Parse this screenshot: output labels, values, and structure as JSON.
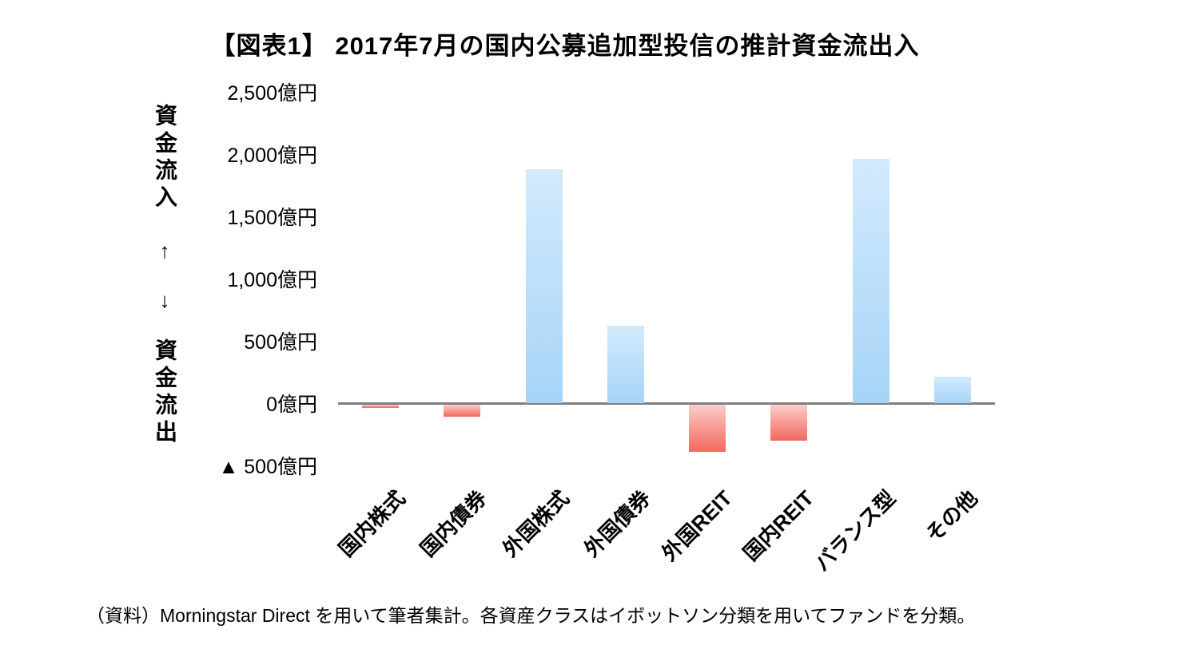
{
  "chart_data": {
    "type": "bar",
    "title": "【図表1】 2017年7月の国内公募追加型投信の推計資金流出入",
    "categories": [
      "国内株式",
      "国内債券",
      "外国株式",
      "外国債券",
      "外国REIT",
      "国内REIT",
      "バランス型",
      "その他"
    ],
    "values": [
      -30,
      -100,
      1880,
      620,
      -380,
      -290,
      1960,
      210
    ],
    "unit": "億円",
    "xlabel": "",
    "ylabel": "",
    "ylim": [
      -500,
      2500
    ],
    "yticks": [
      {
        "value": 2500,
        "label": "2,500億円"
      },
      {
        "value": 2000,
        "label": "2,000億円"
      },
      {
        "value": 1500,
        "label": "1,500億円"
      },
      {
        "value": 1000,
        "label": "1,000億円"
      },
      {
        "value": 500,
        "label": "500億円"
      },
      {
        "value": 0,
        "label": "0億円"
      },
      {
        "value": -500,
        "label": "▲ 500億円"
      }
    ],
    "y_axis_annotations": {
      "inflow_label": "資金流入",
      "outflow_label": "資金流出",
      "up_arrow": "↑",
      "down_arrow": "↓"
    },
    "grid": false,
    "legend": false,
    "colors": {
      "positive_top": "#d3eafd",
      "positive_bottom": "#a6d4f7",
      "negative_top": "#fbcdc9",
      "negative_bottom": "#f2685f",
      "axis_line": "#7f7f7f"
    }
  },
  "source_note": "（資料）Morningstar Direct を用いて筆者集計。各資産クラスはイボットソン分類を用いてファンドを分類。"
}
